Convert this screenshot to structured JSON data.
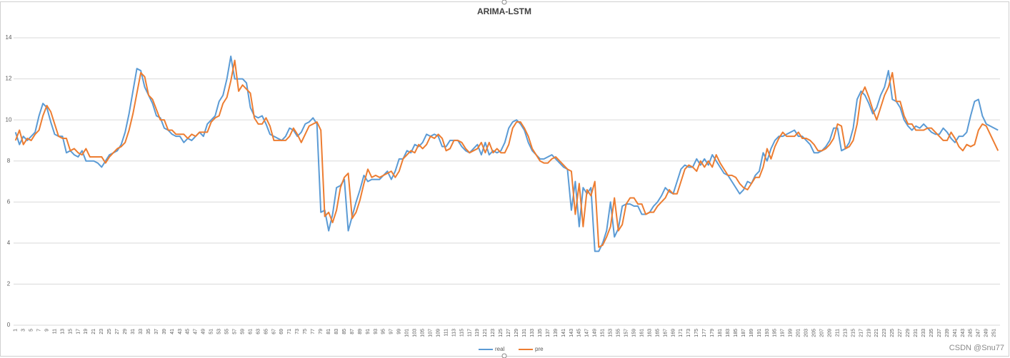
{
  "chart_data": {
    "type": "line",
    "title": "ARIMA-LSTM",
    "categories": [
      "1",
      null,
      "3",
      null,
      "5",
      null,
      "7",
      null,
      "9",
      null,
      "11",
      null,
      "13",
      null,
      "15",
      null,
      "17",
      null,
      "19",
      null,
      "21",
      null,
      "23",
      null,
      "25",
      null,
      "27",
      null,
      "29",
      null,
      "31",
      null,
      "33",
      null,
      "35",
      null,
      "37",
      null,
      "39",
      null,
      "41",
      null,
      "43",
      null,
      "45",
      null,
      "47",
      null,
      "49",
      null,
      "51",
      null,
      "53",
      null,
      "55",
      null,
      "57",
      null,
      "59",
      null,
      "61",
      null,
      "63",
      null,
      "65",
      null,
      "67",
      null,
      "69",
      null,
      "71",
      null,
      "73",
      null,
      "75",
      null,
      "77",
      null,
      "79",
      null,
      "81",
      null,
      "83",
      null,
      "85",
      null,
      "87",
      null,
      "89",
      null,
      "91",
      null,
      "93",
      null,
      "95",
      null,
      "97",
      null,
      "99",
      null,
      "101",
      null,
      "103",
      null,
      "105",
      null,
      "107",
      null,
      "109",
      null,
      "111",
      null,
      "113",
      null,
      "115",
      null,
      "117",
      null,
      "119",
      null,
      "121",
      null,
      "123",
      null,
      "125",
      null,
      "127",
      null,
      "129",
      null,
      "131",
      null,
      "133",
      null,
      "135",
      null,
      "137",
      null,
      "139",
      null,
      "141",
      null,
      "143",
      null,
      "145",
      null,
      "147",
      null,
      "149",
      null,
      "151",
      null,
      "153",
      null,
      "155",
      null,
      "157",
      null,
      "159",
      null,
      "161",
      null,
      "163",
      null,
      "165",
      null,
      "167",
      null,
      "169",
      null,
      "171",
      null,
      "173",
      null,
      "175",
      null,
      "177",
      null,
      "179",
      null,
      "181",
      null,
      "183",
      null,
      "185",
      null,
      "187",
      null,
      "189",
      null,
      "191",
      null,
      "193",
      null,
      "195",
      null,
      "197",
      null,
      "199",
      null,
      "201",
      null,
      "203",
      null,
      "205",
      null,
      "207",
      null,
      "209",
      null,
      "211",
      null,
      "213",
      null,
      "215",
      null,
      "217",
      null,
      "219",
      null,
      "221",
      null,
      "223",
      null,
      "225",
      null,
      "227",
      null,
      "229",
      null,
      "231",
      null,
      "233",
      null,
      "235",
      null,
      "237",
      null,
      "239",
      null,
      "241",
      null,
      "243",
      null,
      "245",
      null,
      "247",
      null,
      "249",
      null,
      "251",
      null
    ],
    "series": [
      {
        "name": "real",
        "color": "#5b9bd5",
        "values": [
          9.4,
          8.8,
          9.2,
          9.0,
          9.2,
          9.4,
          10.2,
          10.8,
          10.6,
          9.9,
          9.3,
          9.2,
          9.2,
          8.4,
          8.5,
          8.3,
          8.2,
          8.5,
          8.0,
          8.0,
          8.0,
          7.9,
          7.7,
          8.0,
          8.3,
          8.4,
          8.5,
          8.8,
          9.4,
          10.3,
          11.4,
          12.5,
          12.4,
          11.6,
          11.2,
          10.8,
          10.2,
          10.1,
          9.6,
          9.5,
          9.3,
          9.2,
          9.2,
          8.9,
          9.1,
          9.0,
          9.2,
          9.4,
          9.2,
          9.8,
          10.0,
          10.2,
          10.9,
          11.2,
          12.0,
          13.1,
          12.0,
          12.0,
          12.0,
          11.8,
          10.6,
          10.2,
          10.1,
          10.2,
          9.8,
          9.3,
          9.2,
          9.1,
          9.0,
          9.2,
          9.6,
          9.5,
          9.2,
          9.4,
          9.8,
          9.9,
          10.1,
          9.8,
          5.5,
          5.6,
          4.6,
          5.4,
          6.7,
          6.8,
          7.1,
          4.6,
          5.3,
          6.0,
          6.6,
          7.3,
          7.0,
          7.1,
          7.1,
          7.1,
          7.3,
          7.5,
          7.1,
          7.5,
          8.1,
          8.1,
          8.5,
          8.4,
          8.8,
          8.7,
          8.9,
          9.3,
          9.2,
          9.3,
          9.2,
          8.7,
          8.7,
          9.0,
          9.0,
          9.0,
          8.7,
          8.5,
          8.4,
          8.6,
          8.8,
          8.3,
          8.9,
          8.3,
          8.5,
          8.4,
          8.5,
          8.9,
          9.6,
          9.9,
          10.0,
          9.8,
          9.5,
          8.9,
          8.5,
          8.3,
          8.1,
          8.1,
          8.2,
          8.3,
          8.1,
          7.9,
          7.7,
          7.6,
          5.6,
          7.0,
          4.8,
          6.7,
          6.4,
          6.7,
          3.6,
          3.6,
          4.0,
          4.6,
          6.0,
          4.3,
          4.7,
          5.8,
          5.9,
          5.9,
          5.8,
          5.8,
          5.4,
          5.4,
          5.5,
          5.8,
          6.0,
          6.3,
          6.7,
          6.5,
          6.4,
          7.0,
          7.6,
          7.8,
          7.7,
          7.7,
          8.1,
          7.8,
          8.1,
          7.8,
          8.3,
          8.0,
          7.7,
          7.4,
          7.3,
          7.0,
          6.7,
          6.4,
          6.6,
          7.0,
          6.9,
          7.3,
          7.5,
          8.4,
          8.0,
          8.6,
          9.0,
          9.2,
          9.2,
          9.3,
          9.4,
          9.5,
          9.2,
          9.2,
          9.0,
          8.8,
          8.4,
          8.4,
          8.5,
          8.7,
          9.0,
          9.6,
          9.6,
          8.5,
          8.6,
          8.9,
          9.6,
          11.0,
          11.4,
          11.2,
          10.8,
          10.3,
          10.6,
          11.2,
          11.6,
          12.4,
          11.0,
          10.9,
          10.6,
          10.0,
          9.7,
          9.5,
          9.7,
          9.6,
          9.8,
          9.6,
          9.4,
          9.3,
          9.3,
          9.6,
          9.4,
          9.1,
          8.9,
          9.2,
          9.2,
          9.4,
          10.2,
          10.9,
          11.0,
          10.2,
          9.8,
          9.7,
          9.6,
          9.5
        ]
      },
      {
        "name": "pre",
        "color": "#ed7d31",
        "values": [
          9.0,
          9.5,
          8.8,
          9.1,
          9.0,
          9.3,
          9.5,
          10.2,
          10.7,
          10.4,
          9.8,
          9.2,
          9.1,
          9.1,
          8.5,
          8.6,
          8.4,
          8.3,
          8.6,
          8.2,
          8.2,
          8.2,
          8.2,
          7.9,
          8.2,
          8.4,
          8.6,
          8.7,
          8.9,
          9.5,
          10.3,
          11.3,
          12.3,
          12.1,
          11.2,
          11.0,
          10.5,
          10.0,
          10.0,
          9.5,
          9.5,
          9.3,
          9.3,
          9.3,
          9.1,
          9.3,
          9.2,
          9.4,
          9.4,
          9.4,
          9.9,
          10.1,
          10.2,
          10.8,
          11.1,
          11.9,
          12.9,
          11.4,
          11.7,
          11.5,
          11.3,
          10.1,
          9.8,
          9.8,
          10.1,
          9.7,
          9.0,
          9.0,
          9.0,
          9.0,
          9.2,
          9.6,
          9.3,
          8.9,
          9.3,
          9.7,
          9.8,
          9.9,
          9.5,
          5.3,
          5.5,
          5.0,
          5.6,
          6.7,
          7.2,
          7.4,
          5.2,
          5.5,
          6.1,
          6.9,
          7.6,
          7.2,
          7.3,
          7.2,
          7.3,
          7.4,
          7.5,
          7.2,
          7.5,
          8.1,
          8.3,
          8.5,
          8.4,
          8.8,
          8.6,
          8.8,
          9.2,
          9.1,
          9.3,
          9.1,
          8.5,
          8.6,
          9.0,
          9.0,
          8.9,
          8.6,
          8.4,
          8.5,
          8.6,
          8.9,
          8.4,
          8.9,
          8.4,
          8.6,
          8.4,
          8.4,
          8.8,
          9.6,
          9.9,
          9.9,
          9.6,
          9.2,
          8.6,
          8.3,
          8.0,
          7.9,
          7.9,
          8.1,
          8.2,
          8.0,
          7.8,
          7.6,
          7.5,
          5.4,
          6.9,
          4.8,
          6.6,
          6.3,
          7.0,
          3.8,
          3.9,
          4.3,
          4.8,
          6.2,
          4.6,
          4.9,
          5.9,
          6.2,
          6.2,
          5.9,
          5.9,
          5.4,
          5.5,
          5.5,
          5.8,
          6.0,
          6.2,
          6.6,
          6.4,
          6.4,
          7.0,
          7.6,
          7.8,
          7.7,
          7.5,
          8.0,
          7.7,
          8.0,
          7.7,
          8.3,
          7.9,
          7.6,
          7.3,
          7.3,
          7.2,
          6.9,
          6.7,
          6.6,
          6.9,
          7.2,
          7.2,
          7.7,
          8.6,
          8.1,
          8.7,
          9.1,
          9.4,
          9.2,
          9.2,
          9.2,
          9.4,
          9.1,
          9.1,
          9.0,
          8.8,
          8.5,
          8.5,
          8.6,
          8.8,
          9.1,
          9.8,
          9.7,
          8.6,
          8.7,
          9.0,
          9.8,
          11.2,
          11.6,
          11.1,
          10.5,
          10.0,
          10.6,
          11.2,
          11.6,
          12.3,
          10.9,
          10.9,
          10.2,
          9.8,
          9.8,
          9.5,
          9.5,
          9.5,
          9.6,
          9.6,
          9.4,
          9.2,
          9.0,
          9.0,
          9.4,
          9.1,
          8.7,
          8.5,
          8.8,
          8.7,
          8.8,
          9.5,
          9.8,
          9.7,
          9.3,
          8.9,
          8.5
        ]
      }
    ],
    "ylim": [
      0,
      14
    ],
    "yticks": [
      0,
      2,
      4,
      6,
      8,
      10,
      12,
      14
    ],
    "grid": true,
    "legend": "bottom",
    "watermark": "CSDN @Snu77"
  }
}
